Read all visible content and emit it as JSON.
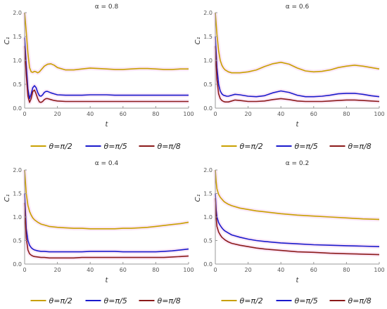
{
  "colors": {
    "pi2": "#c8a000",
    "pi5": "#1a1acc",
    "pi8": "#8b1a1a",
    "axis": "#999999",
    "shade": "#f7d6f0"
  },
  "chart_data": [
    {
      "type": "line",
      "title": "α = 0.8",
      "xlabel": "t",
      "ylabel": "C₁",
      "xlim": [
        0,
        100
      ],
      "ylim": [
        0,
        2.0
      ],
      "xticks": [
        "0",
        "20",
        "40",
        "60",
        "80",
        "100"
      ],
      "yticks": [
        "0.0",
        "0.5",
        "1.0",
        "1.5",
        "2.0"
      ],
      "grid": false,
      "legend": "bottom",
      "series": [
        {
          "name": "θ=π/2",
          "color": "#c8a000",
          "x": [
            0,
            1,
            2,
            3,
            4,
            5,
            6,
            7,
            8,
            9,
            10,
            12,
            14,
            16,
            18,
            20,
            25,
            30,
            35,
            40,
            45,
            50,
            55,
            60,
            65,
            70,
            75,
            80,
            85,
            90,
            95,
            100
          ],
          "y": [
            2.0,
            1.6,
            1.15,
            0.85,
            0.76,
            0.75,
            0.77,
            0.76,
            0.74,
            0.76,
            0.8,
            0.88,
            0.92,
            0.93,
            0.9,
            0.85,
            0.8,
            0.8,
            0.82,
            0.84,
            0.83,
            0.82,
            0.81,
            0.81,
            0.82,
            0.83,
            0.83,
            0.82,
            0.81,
            0.81,
            0.82,
            0.82
          ]
        },
        {
          "name": "θ=π/5",
          "color": "#1a1acc",
          "x": [
            0,
            1,
            2,
            3,
            4,
            5,
            6,
            7,
            8,
            9,
            10,
            11,
            12,
            13,
            14,
            16,
            18,
            20,
            25,
            30,
            35,
            40,
            45,
            50,
            55,
            60,
            65,
            70,
            75,
            80,
            85,
            90,
            95,
            100
          ],
          "y": [
            1.48,
            0.9,
            0.4,
            0.2,
            0.3,
            0.43,
            0.47,
            0.43,
            0.33,
            0.26,
            0.25,
            0.28,
            0.33,
            0.35,
            0.35,
            0.32,
            0.3,
            0.28,
            0.27,
            0.27,
            0.27,
            0.28,
            0.28,
            0.28,
            0.27,
            0.27,
            0.27,
            0.27,
            0.27,
            0.27,
            0.27,
            0.27,
            0.27,
            0.27
          ]
        },
        {
          "name": "θ=π/8",
          "color": "#8b1a1a",
          "x": [
            0,
            1,
            2,
            3,
            4,
            5,
            6,
            7,
            8,
            9,
            10,
            11,
            12,
            13,
            14,
            16,
            18,
            20,
            25,
            30,
            35,
            40,
            45,
            50,
            55,
            60,
            65,
            70,
            75,
            80,
            85,
            90,
            95,
            100
          ],
          "y": [
            1.3,
            0.7,
            0.25,
            0.12,
            0.2,
            0.35,
            0.38,
            0.3,
            0.2,
            0.13,
            0.12,
            0.14,
            0.18,
            0.2,
            0.2,
            0.18,
            0.16,
            0.15,
            0.14,
            0.14,
            0.14,
            0.14,
            0.14,
            0.14,
            0.14,
            0.14,
            0.14,
            0.14,
            0.14,
            0.14,
            0.14,
            0.14,
            0.14,
            0.14
          ]
        }
      ]
    },
    {
      "type": "line",
      "title": "α = 0.6",
      "xlabel": "t",
      "ylabel": "C₁",
      "xlim": [
        0,
        100
      ],
      "ylim": [
        0,
        2.0
      ],
      "xticks": [
        "0",
        "20",
        "40",
        "60",
        "80",
        "100"
      ],
      "yticks": [
        "0.0",
        "0.5",
        "1.0",
        "1.5",
        "2.0"
      ],
      "grid": false,
      "legend": "bottom",
      "series": [
        {
          "name": "θ=π/2",
          "color": "#c8a000",
          "x": [
            0,
            1,
            2,
            3,
            4,
            5,
            6,
            8,
            10,
            12,
            15,
            20,
            25,
            30,
            35,
            40,
            45,
            50,
            55,
            60,
            65,
            70,
            75,
            80,
            85,
            90,
            95,
            100
          ],
          "y": [
            2.0,
            1.55,
            1.2,
            1.0,
            0.9,
            0.84,
            0.8,
            0.76,
            0.74,
            0.74,
            0.74,
            0.76,
            0.8,
            0.87,
            0.93,
            0.96,
            0.92,
            0.84,
            0.78,
            0.76,
            0.77,
            0.8,
            0.85,
            0.88,
            0.9,
            0.88,
            0.85,
            0.82
          ]
        },
        {
          "name": "θ=π/5",
          "color": "#1a1acc",
          "x": [
            0,
            1,
            2,
            3,
            4,
            5,
            6,
            7,
            8,
            10,
            12,
            15,
            20,
            25,
            30,
            35,
            40,
            45,
            50,
            55,
            60,
            65,
            70,
            75,
            80,
            85,
            90,
            95,
            100
          ],
          "y": [
            1.5,
            0.85,
            0.5,
            0.36,
            0.3,
            0.27,
            0.26,
            0.25,
            0.25,
            0.27,
            0.29,
            0.28,
            0.25,
            0.24,
            0.26,
            0.32,
            0.36,
            0.33,
            0.27,
            0.24,
            0.24,
            0.25,
            0.27,
            0.3,
            0.31,
            0.31,
            0.29,
            0.26,
            0.24
          ]
        },
        {
          "name": "θ=π/8",
          "color": "#8b1a1a",
          "x": [
            0,
            1,
            2,
            3,
            4,
            5,
            6,
            7,
            8,
            10,
            12,
            15,
            20,
            25,
            30,
            35,
            40,
            45,
            50,
            55,
            60,
            65,
            70,
            75,
            80,
            85,
            90,
            95,
            100
          ],
          "y": [
            1.3,
            0.6,
            0.3,
            0.2,
            0.16,
            0.14,
            0.13,
            0.13,
            0.13,
            0.15,
            0.17,
            0.16,
            0.14,
            0.14,
            0.15,
            0.18,
            0.2,
            0.18,
            0.15,
            0.14,
            0.14,
            0.14,
            0.15,
            0.16,
            0.17,
            0.17,
            0.16,
            0.15,
            0.14
          ]
        }
      ]
    },
    {
      "type": "line",
      "title": "α = 0.4",
      "xlabel": "t",
      "ylabel": "C₁",
      "xlim": [
        0,
        100
      ],
      "ylim": [
        0,
        2.0
      ],
      "xticks": [
        "0",
        "20",
        "40",
        "60",
        "80",
        "100"
      ],
      "yticks": [
        "0.0",
        "0.5",
        "1.0",
        "1.5",
        "2.0"
      ],
      "grid": false,
      "legend": "bottom",
      "series": [
        {
          "name": "θ=π/2",
          "color": "#c8a000",
          "x": [
            0,
            1,
            2,
            3,
            4,
            5,
            6,
            8,
            10,
            12,
            15,
            20,
            25,
            30,
            35,
            40,
            45,
            50,
            55,
            60,
            65,
            70,
            75,
            80,
            85,
            90,
            95,
            100
          ],
          "y": [
            2.0,
            1.5,
            1.25,
            1.12,
            1.04,
            0.98,
            0.94,
            0.89,
            0.85,
            0.83,
            0.8,
            0.78,
            0.77,
            0.76,
            0.76,
            0.75,
            0.75,
            0.75,
            0.75,
            0.76,
            0.76,
            0.77,
            0.78,
            0.8,
            0.82,
            0.84,
            0.86,
            0.89
          ]
        },
        {
          "name": "θ=π/5",
          "color": "#1a1acc",
          "x": [
            0,
            1,
            2,
            3,
            4,
            5,
            6,
            8,
            10,
            12,
            15,
            20,
            25,
            30,
            35,
            40,
            45,
            50,
            55,
            60,
            65,
            70,
            75,
            80,
            85,
            90,
            95,
            100
          ],
          "y": [
            1.5,
            0.75,
            0.5,
            0.4,
            0.35,
            0.32,
            0.3,
            0.28,
            0.27,
            0.27,
            0.26,
            0.26,
            0.26,
            0.26,
            0.26,
            0.27,
            0.27,
            0.27,
            0.27,
            0.26,
            0.26,
            0.26,
            0.26,
            0.26,
            0.27,
            0.28,
            0.3,
            0.32
          ]
        },
        {
          "name": "θ=π/8",
          "color": "#8b1a1a",
          "x": [
            0,
            1,
            2,
            3,
            4,
            5,
            6,
            8,
            10,
            12,
            15,
            20,
            25,
            30,
            35,
            40,
            45,
            50,
            55,
            60,
            65,
            70,
            75,
            80,
            85,
            90,
            95,
            100
          ],
          "y": [
            1.3,
            0.55,
            0.3,
            0.22,
            0.19,
            0.17,
            0.16,
            0.15,
            0.14,
            0.14,
            0.13,
            0.13,
            0.13,
            0.13,
            0.14,
            0.14,
            0.14,
            0.14,
            0.14,
            0.14,
            0.14,
            0.14,
            0.14,
            0.14,
            0.14,
            0.15,
            0.16,
            0.17
          ]
        }
      ]
    },
    {
      "type": "line",
      "title": "α = 0.2",
      "xlabel": "t",
      "ylabel": "C₁",
      "xlim": [
        0,
        100
      ],
      "ylim": [
        0,
        2.0
      ],
      "xticks": [
        "0",
        "20",
        "40",
        "60",
        "80",
        "100"
      ],
      "yticks": [
        "0.0",
        "0.5",
        "1.0",
        "1.5",
        "2.0"
      ],
      "grid": false,
      "legend": "bottom",
      "series": [
        {
          "name": "θ=π/2",
          "color": "#c8a000",
          "x": [
            0,
            0.5,
            1,
            2,
            3,
            4,
            5,
            6,
            8,
            10,
            15,
            20,
            25,
            30,
            40,
            50,
            60,
            70,
            80,
            90,
            100
          ],
          "y": [
            2.0,
            1.75,
            1.6,
            1.48,
            1.42,
            1.38,
            1.34,
            1.31,
            1.27,
            1.24,
            1.19,
            1.16,
            1.13,
            1.11,
            1.07,
            1.04,
            1.02,
            1.0,
            0.98,
            0.96,
            0.95
          ]
        },
        {
          "name": "θ=π/5",
          "color": "#1a1acc",
          "x": [
            0,
            0.5,
            1,
            2,
            3,
            4,
            5,
            6,
            8,
            10,
            15,
            20,
            25,
            30,
            40,
            50,
            60,
            70,
            80,
            90,
            100
          ],
          "y": [
            1.5,
            1.15,
            1.0,
            0.88,
            0.82,
            0.77,
            0.73,
            0.7,
            0.66,
            0.62,
            0.57,
            0.53,
            0.5,
            0.48,
            0.45,
            0.43,
            0.41,
            0.4,
            0.39,
            0.38,
            0.37
          ]
        },
        {
          "name": "θ=π/8",
          "color": "#8b1a1a",
          "x": [
            0,
            0.5,
            1,
            2,
            3,
            4,
            5,
            6,
            8,
            10,
            15,
            20,
            25,
            30,
            40,
            50,
            60,
            70,
            80,
            90,
            100
          ],
          "y": [
            1.4,
            1.0,
            0.8,
            0.68,
            0.62,
            0.57,
            0.54,
            0.51,
            0.47,
            0.44,
            0.4,
            0.37,
            0.34,
            0.32,
            0.29,
            0.26,
            0.25,
            0.23,
            0.22,
            0.21,
            0.2
          ]
        }
      ]
    }
  ]
}
